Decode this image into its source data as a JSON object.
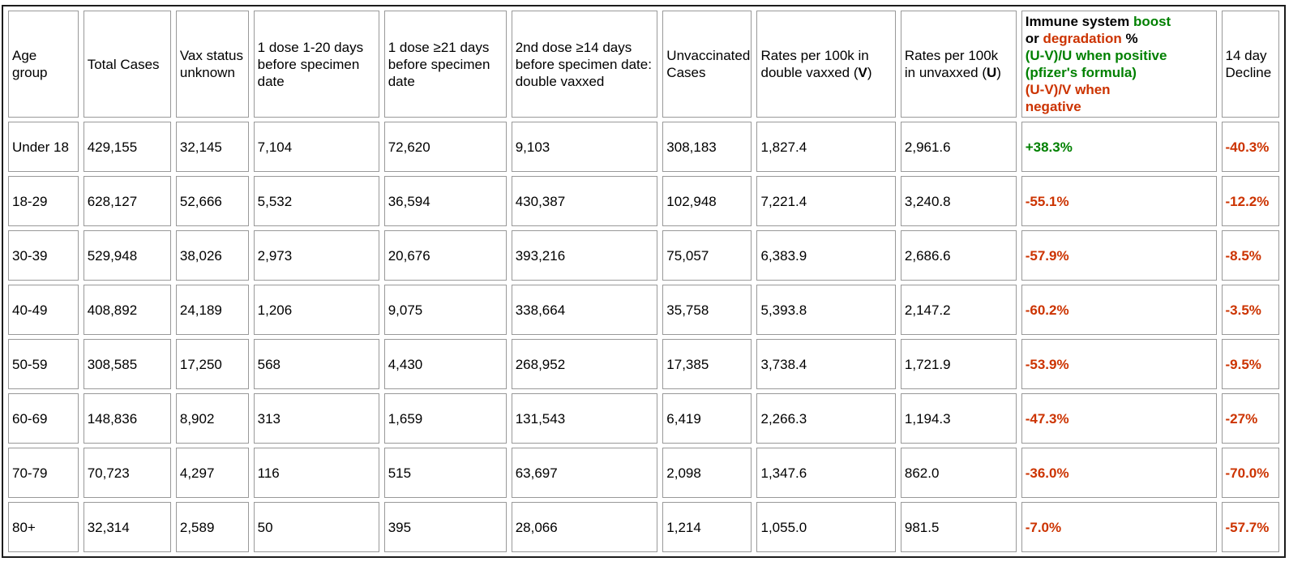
{
  "colors": {
    "black": "#000000",
    "green": "#008000",
    "red": "#cc3300",
    "cell_border": "#999999",
    "outer_border": "#1c1c1c",
    "background": "#ffffff"
  },
  "chart_data": {
    "type": "table",
    "title": "",
    "columns": [
      "Age group",
      "Total Cases",
      "Vax status unknown",
      "1 dose 1-20 days before specimen date",
      "1 dose ≥21 days before specimen date",
      "2nd dose ≥14 days before specimen date: double vaxxed",
      "Unvaccinated Cases",
      "Rates per 100k in double vaxxed (V)",
      "Rates per 100k in unvaxxed (U)",
      "Immune system boost or degradation % (U-V)/U when positive (pfizer's formula) (U-V)/V when negative",
      "14 day Decline"
    ],
    "rows": [
      [
        "Under 18",
        "429,155",
        "32,145",
        "7,104",
        "72,620",
        "9,103",
        "308,183",
        "1,827.4",
        "2,961.6",
        "+38.3%",
        "-40.3%"
      ],
      [
        "18-29",
        "628,127",
        "52,666",
        "5,532",
        "36,594",
        "430,387",
        "102,948",
        "7,221.4",
        "3,240.8",
        "-55.1%",
        "-12.2%"
      ],
      [
        "30-39",
        "529,948",
        "38,026",
        "2,973",
        "20,676",
        "393,216",
        "75,057",
        "6,383.9",
        "2,686.6",
        "-57.9%",
        "-8.5%"
      ],
      [
        "40-49",
        "408,892",
        "24,189",
        "1,206",
        "9,075",
        "338,664",
        "35,758",
        "5,393.8",
        "2,147.2",
        "-60.2%",
        "-3.5%"
      ],
      [
        "50-59",
        "308,585",
        "17,250",
        "568",
        "4,430",
        "268,952",
        "17,385",
        "3,738.4",
        "1,721.9",
        "-53.9%",
        "-9.5%"
      ],
      [
        "60-69",
        "148,836",
        "8,902",
        "313",
        "1,659",
        "131,543",
        "6,419",
        "2,266.3",
        "1,194.3",
        "-47.3%",
        "-27%"
      ],
      [
        "70-79",
        "70,723",
        "4,297",
        "116",
        "515",
        "63,697",
        "2,098",
        "1,347.6",
        "862.0",
        "-36.0%",
        "-70.0%"
      ],
      [
        "80+",
        "32,314",
        "2,589",
        "50",
        "395",
        "28,066",
        "1,214",
        "1,055.0",
        "981.5",
        "-7.0%",
        "-57.7%"
      ]
    ]
  },
  "header_cells": [
    {
      "parts": [
        {
          "t": "Age group"
        }
      ]
    },
    {
      "parts": [
        {
          "t": "Total Cases"
        }
      ]
    },
    {
      "parts": [
        {
          "t": "Vax status unknown"
        }
      ]
    },
    {
      "parts": [
        {
          "t": "1 dose 1-20 days before specimen date"
        }
      ]
    },
    {
      "parts": [
        {
          "t": "1 dose ≥21 days before specimen date"
        }
      ]
    },
    {
      "parts": [
        {
          "t": "2nd dose ≥14 days before specimen date: double vaxxed"
        }
      ]
    },
    {
      "parts": [
        {
          "t": "Unvaccinated Cases"
        }
      ]
    },
    {
      "parts": [
        {
          "t": "Rates per 100k in double vaxxed ("
        },
        {
          "t": "V",
          "b": true
        },
        {
          "t": ")"
        }
      ]
    },
    {
      "parts": [
        {
          "t": "Rates per 100k in unvaxxed ("
        },
        {
          "t": "U",
          "b": true
        },
        {
          "t": ")"
        }
      ]
    },
    {
      "lines": [
        [
          {
            "t": "Immune system ",
            "c": "black"
          },
          {
            "t": "boost",
            "c": "green"
          }
        ],
        [
          {
            "t": "or ",
            "c": "black"
          },
          {
            "t": "degradation",
            "c": "red"
          },
          {
            "t": " %",
            "c": "black"
          }
        ],
        [
          {
            "t": "(U-V)/U when positive",
            "c": "green"
          }
        ],
        [
          {
            "t": "(pfizer's formula)",
            "c": "green"
          }
        ],
        [
          {
            "t": "(U-V)/V when",
            "c": "red"
          }
        ],
        [
          {
            "t": "negative",
            "c": "red"
          }
        ]
      ]
    },
    {
      "parts": [
        {
          "t": "14 day Decline"
        }
      ]
    }
  ]
}
